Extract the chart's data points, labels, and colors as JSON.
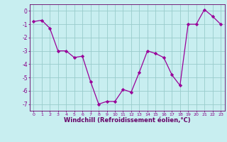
{
  "x": [
    0,
    1,
    2,
    3,
    4,
    5,
    6,
    7,
    8,
    9,
    10,
    11,
    12,
    13,
    14,
    15,
    16,
    17,
    18,
    19,
    20,
    21,
    22,
    23
  ],
  "y": [
    -0.8,
    -0.7,
    -1.3,
    -3.0,
    -3.0,
    -3.5,
    -3.4,
    -5.3,
    -7.0,
    -6.8,
    -6.8,
    -5.9,
    -6.1,
    -4.6,
    -3.0,
    -3.2,
    -3.5,
    -4.8,
    -5.6,
    -1.0,
    -1.0,
    0.1,
    -0.4,
    -1.0
  ],
  "line_color": "#990099",
  "marker": "D",
  "marker_size": 2.2,
  "bg_color": "#c8eef0",
  "grid_color": "#99cccc",
  "xlabel": "Windchill (Refroidissement éolien,°C)",
  "xlabel_color": "#660066",
  "tick_color": "#880088",
  "axis_color": "#660066",
  "ylim": [
    -7.5,
    0.5
  ],
  "yticks": [
    0,
    -1,
    -2,
    -3,
    -4,
    -5,
    -6,
    -7
  ],
  "xlim": [
    -0.5,
    23.5
  ],
  "xticks": [
    0,
    1,
    2,
    3,
    4,
    5,
    6,
    7,
    8,
    9,
    10,
    11,
    12,
    13,
    14,
    15,
    16,
    17,
    18,
    19,
    20,
    21,
    22,
    23
  ]
}
